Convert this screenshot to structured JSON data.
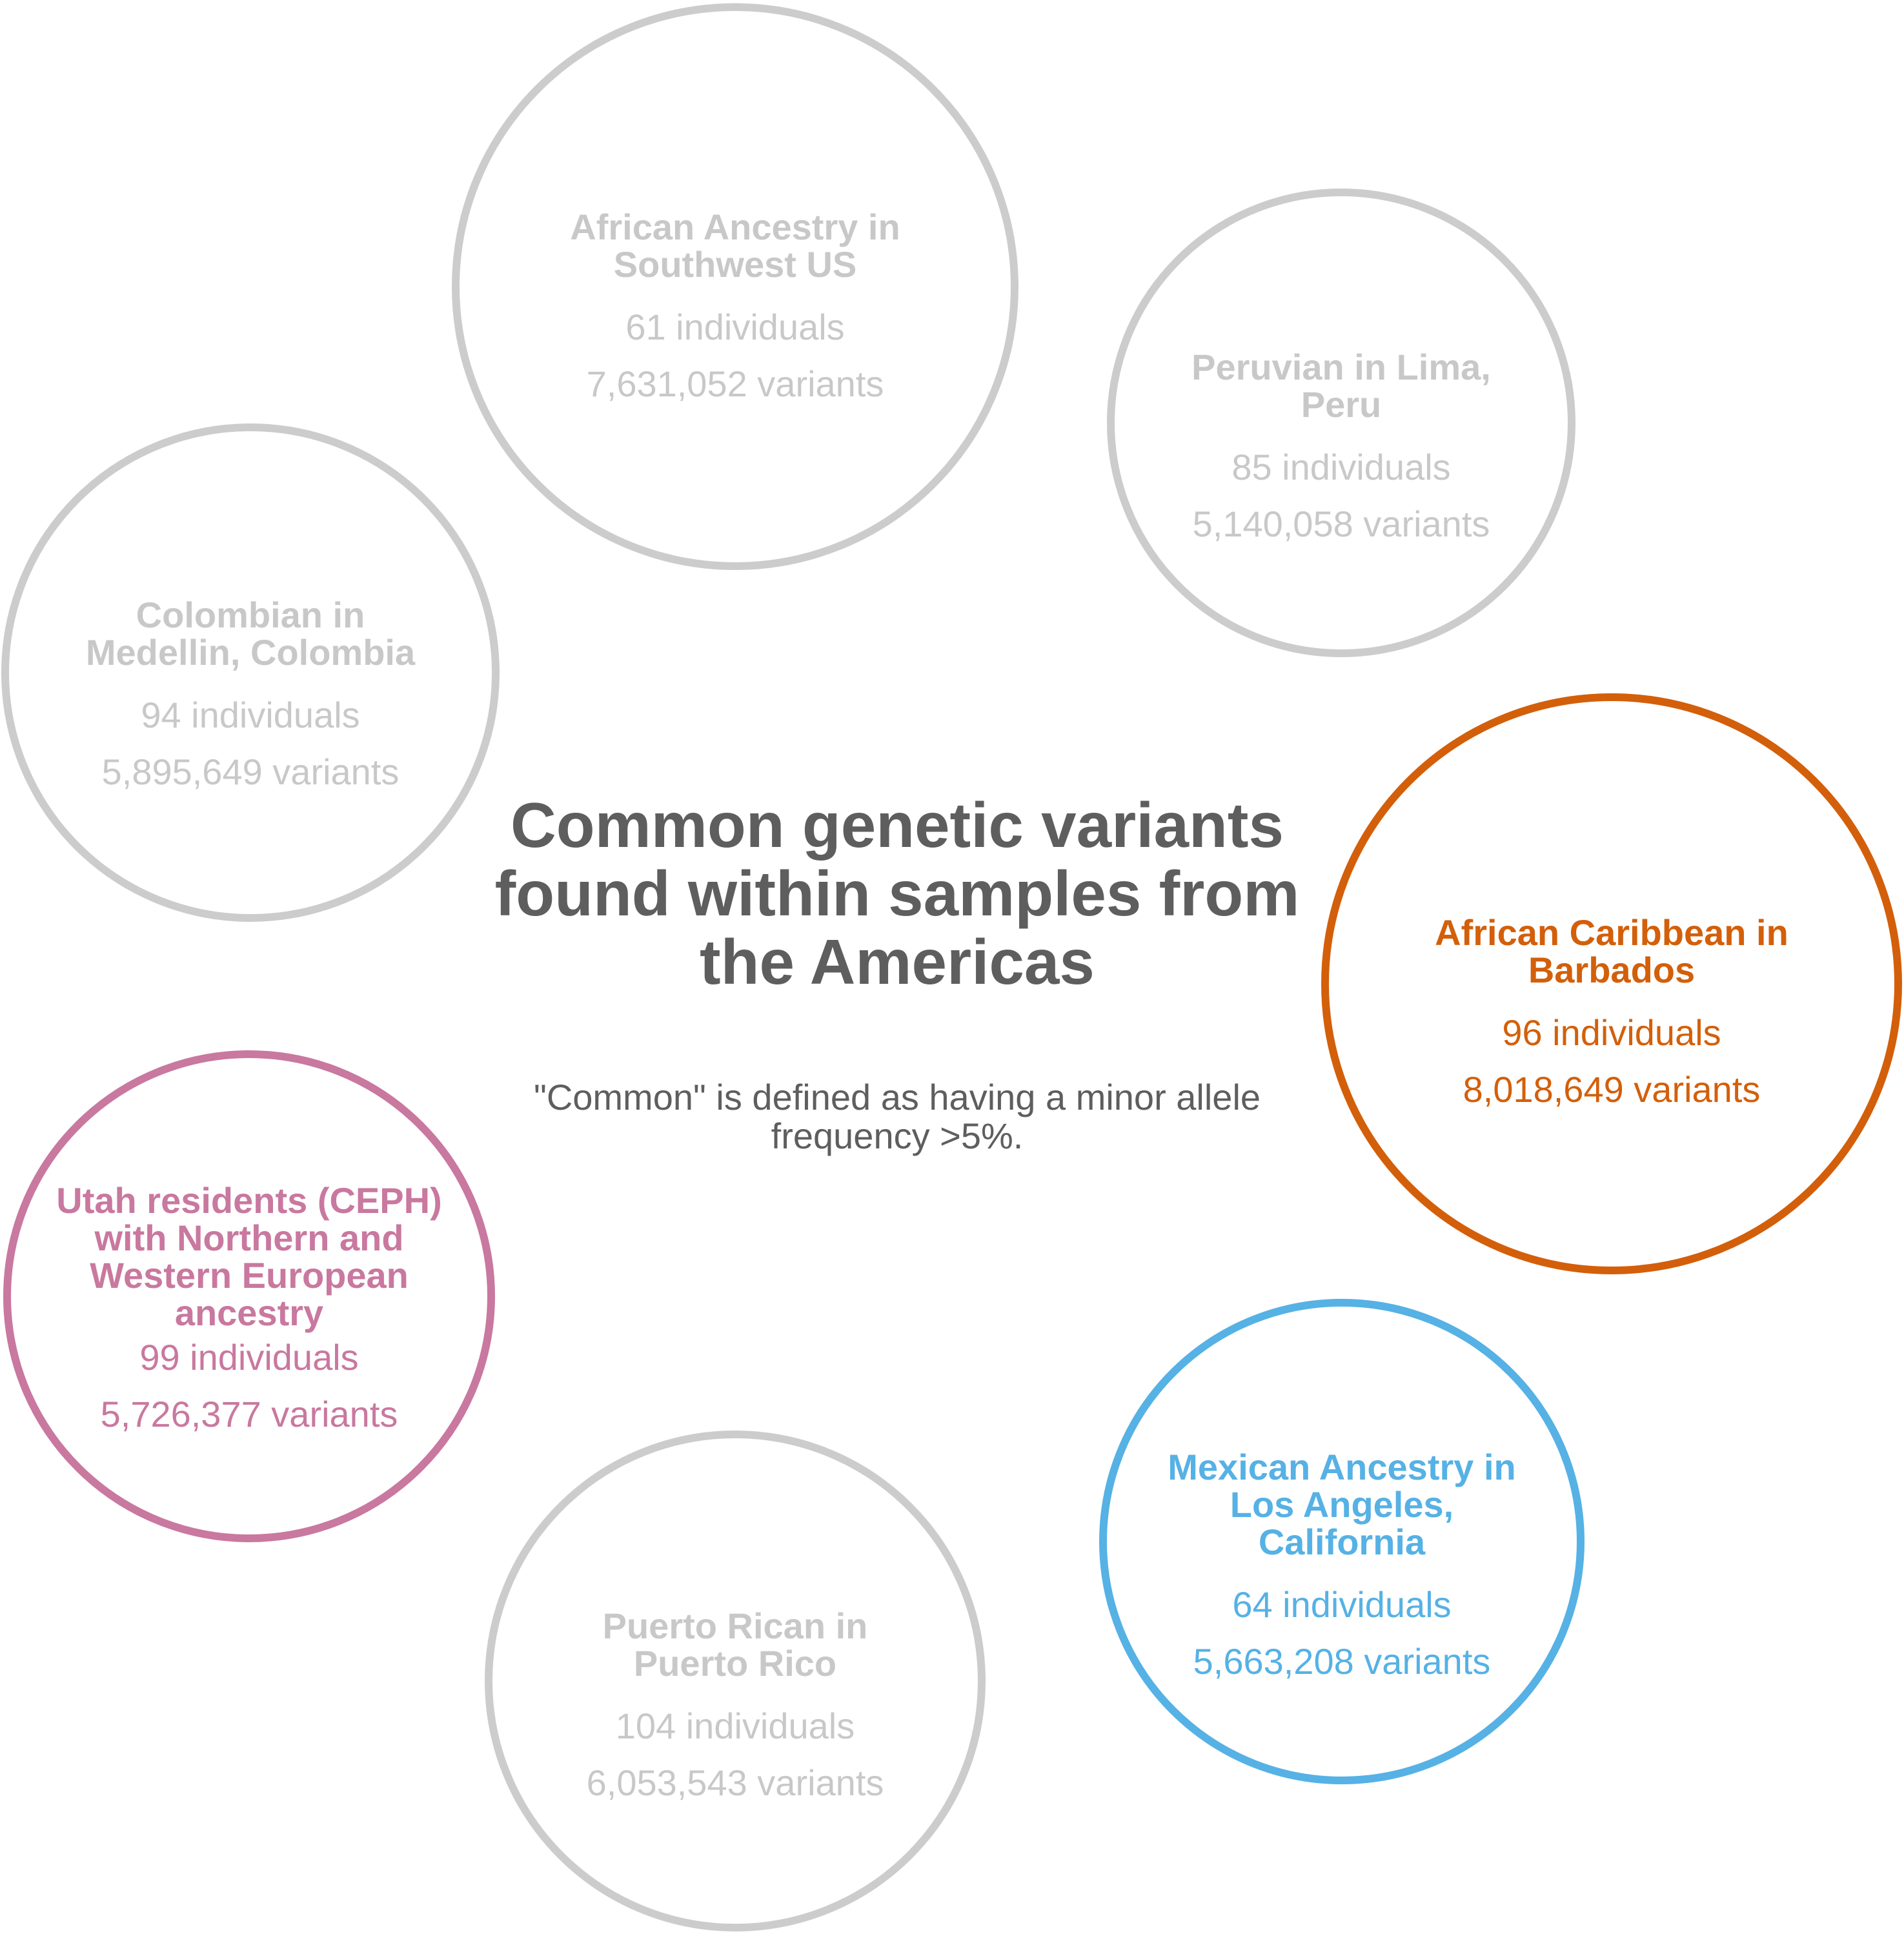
{
  "title": "Common genetic variants found within samples from the Americas",
  "note": "\"Common\" is defined as having a minor allele frequency >5%.",
  "populations": [
    {
      "name": "African Ancestry in Southwest US",
      "individuals": "61 individuals",
      "variants": "7,631,052 variants",
      "highlighted": false,
      "color": "#cccccc"
    },
    {
      "name": "Peruvian in Lima, Peru",
      "individuals": "85 individuals",
      "variants": "5,140,058 variants",
      "highlighted": false,
      "color": "#cccccc"
    },
    {
      "name": "Colombian in Medellin, Colombia",
      "individuals": "94 individuals",
      "variants": "5,895,649 variants",
      "highlighted": false,
      "color": "#cccccc"
    },
    {
      "name": "African Caribbean in Barbados",
      "individuals": "96 individuals",
      "variants": "8,018,649 variants",
      "highlighted": true,
      "color": "#d35f0a"
    },
    {
      "name": "Utah residents (CEPH) with Northern and Western European ancestry",
      "individuals": "99 individuals",
      "variants": "5,726,377 variants",
      "highlighted": true,
      "color": "#c9789f"
    },
    {
      "name": "Mexican Ancestry in Los Angeles, California",
      "individuals": "64 individuals",
      "variants": "5,663,208 variants",
      "highlighted": true,
      "color": "#56b1e5"
    },
    {
      "name": "Puerto Rican in Puerto Rico",
      "individuals": "104 individuals",
      "variants": "6,053,543 variants",
      "highlighted": false,
      "color": "#cccccc"
    }
  ]
}
